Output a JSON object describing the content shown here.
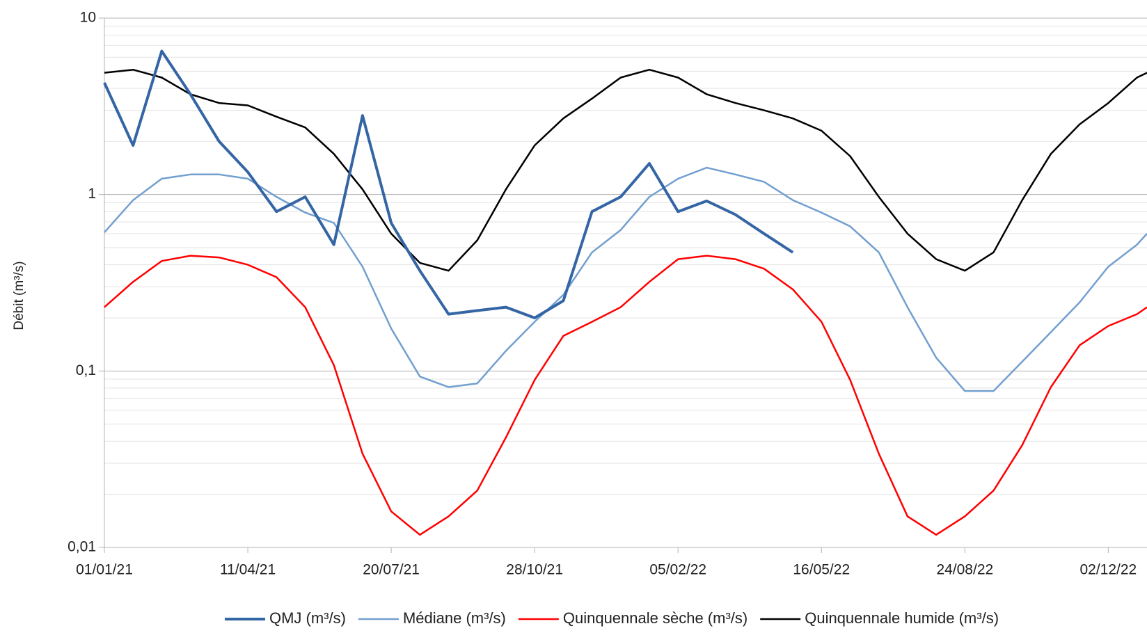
{
  "chart_data": {
    "type": "line",
    "y_label": "Débit (m³/s)",
    "log_scale": true,
    "grid": true,
    "minor_grid": true,
    "legend": "bottom",
    "x": [
      "01/01/21",
      "21/01/21",
      "10/02/21",
      "02/03/21",
      "22/03/21",
      "11/04/21",
      "01/05/21",
      "21/05/21",
      "10/06/21",
      "30/06/21",
      "20/07/21",
      "09/08/21",
      "29/08/21",
      "18/09/21",
      "08/10/21",
      "28/10/21",
      "17/11/21",
      "07/12/21",
      "27/12/21",
      "16/01/22",
      "05/02/22",
      "25/02/22",
      "17/03/22",
      "06/04/22",
      "26/04/22",
      "16/05/22",
      "05/06/22",
      "25/06/22",
      "15/07/22",
      "04/08/22",
      "24/08/22",
      "13/09/22",
      "03/10/22",
      "23/10/22",
      "12/11/22",
      "02/12/22",
      "22/12/22",
      "29/12/22"
    ],
    "xlim": [
      "01/01/21",
      "29/12/22"
    ],
    "xticks": [
      "01/01/21",
      "11/04/21",
      "20/07/21",
      "28/10/21",
      "05/02/22",
      "16/05/22",
      "24/08/22",
      "02/12/22"
    ],
    "ylim": [
      0.01,
      10
    ],
    "yticks": [
      {
        "value": 0.01,
        "label": "0,01"
      },
      {
        "value": 0.1,
        "label": "0,1"
      },
      1,
      10
    ],
    "series": [
      {
        "name": "QMJ (m³/s)",
        "color": "#3465a4",
        "width": 4,
        "values": [
          4.3,
          1.9,
          6.5,
          3.7,
          2.0,
          1.34,
          0.8,
          0.97,
          0.52,
          2.8,
          0.69,
          0.37,
          0.21,
          0.22,
          0.23,
          0.2,
          0.25,
          0.8,
          0.97,
          1.5,
          0.8,
          0.92,
          0.77,
          0.6,
          0.47,
          null,
          null,
          null,
          null,
          null,
          null,
          null,
          null,
          null,
          null,
          null,
          null,
          null
        ]
      },
      {
        "name": "Médiane (m³/s)",
        "color": "#729fcf",
        "width": 2.5,
        "values": [
          0.61,
          0.93,
          1.23,
          1.3,
          1.3,
          1.23,
          0.97,
          0.79,
          0.69,
          0.39,
          0.174,
          0.093,
          0.081,
          0.085,
          0.13,
          0.19,
          0.27,
          0.47,
          0.63,
          0.97,
          1.23,
          1.42,
          1.3,
          1.18,
          0.93,
          0.79,
          0.66,
          0.47,
          0.23,
          0.119,
          0.077,
          0.077,
          0.113,
          0.166,
          0.245,
          0.39,
          0.52,
          0.6
        ]
      },
      {
        "name": "Quinquennale sèche (m³/s)",
        "color": "#ff0000",
        "width": 2.5,
        "values": [
          0.23,
          0.32,
          0.42,
          0.45,
          0.44,
          0.4,
          0.34,
          0.23,
          0.108,
          0.034,
          0.016,
          0.0118,
          0.015,
          0.021,
          0.042,
          0.089,
          0.158,
          0.19,
          0.23,
          0.32,
          0.43,
          0.45,
          0.43,
          0.38,
          0.29,
          0.19,
          0.089,
          0.034,
          0.015,
          0.0118,
          0.015,
          0.021,
          0.038,
          0.081,
          0.14,
          0.18,
          0.21,
          0.23
        ]
      },
      {
        "name": "Quinquennale humide (m³/s)",
        "color": "#000000",
        "width": 2.5,
        "values": [
          4.9,
          5.1,
          4.6,
          3.7,
          3.3,
          3.2,
          2.76,
          2.4,
          1.7,
          1.07,
          0.6,
          0.41,
          0.37,
          0.55,
          1.07,
          1.9,
          2.7,
          3.5,
          4.6,
          5.1,
          4.6,
          3.7,
          3.3,
          3.0,
          2.7,
          2.3,
          1.65,
          0.97,
          0.6,
          0.43,
          0.37,
          0.47,
          0.93,
          1.7,
          2.5,
          3.3,
          4.6,
          4.9
        ]
      }
    ]
  }
}
